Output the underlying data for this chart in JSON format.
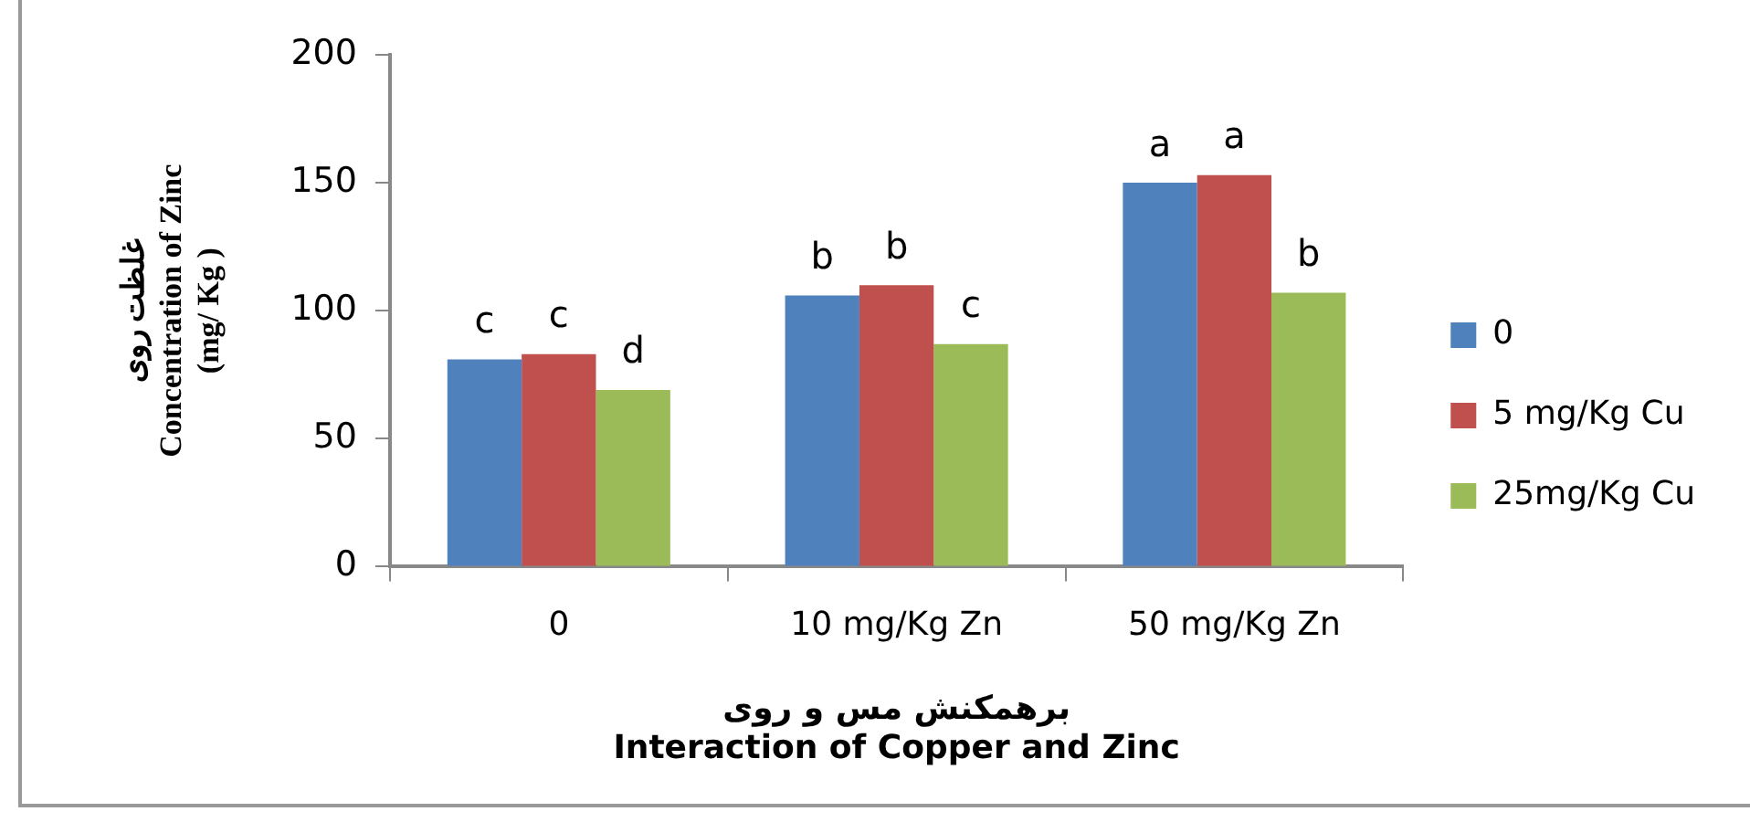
{
  "chart_data": {
    "type": "bar",
    "ylabel": "غلظت روی\nConcentration of Zinc\n(mg/ Kg )",
    "xlabel": "برهمکنش مس و روی\nInteraction of Copper and Zinc",
    "categories": [
      "0",
      "10 mg/Kg Zn",
      "50 mg/Kg Zn"
    ],
    "series": [
      {
        "name": "0",
        "color": "#4f81bd",
        "values": [
          81,
          106,
          150
        ],
        "value_labels": [
          "c",
          "b",
          "a"
        ]
      },
      {
        "name": "5 mg/Kg Cu",
        "color": "#c0504d",
        "values": [
          83,
          110,
          153
        ],
        "value_labels": [
          "c",
          "b",
          "a"
        ]
      },
      {
        "name": "25mg/Kg Cu",
        "color": "#9bbb59",
        "values": [
          69,
          87,
          107
        ],
        "value_labels": [
          "d",
          "c",
          "b"
        ]
      }
    ],
    "ylim": [
      0,
      200
    ],
    "yticks": [
      0,
      50,
      100,
      150,
      200
    ],
    "grid": false,
    "legend": "right"
  }
}
